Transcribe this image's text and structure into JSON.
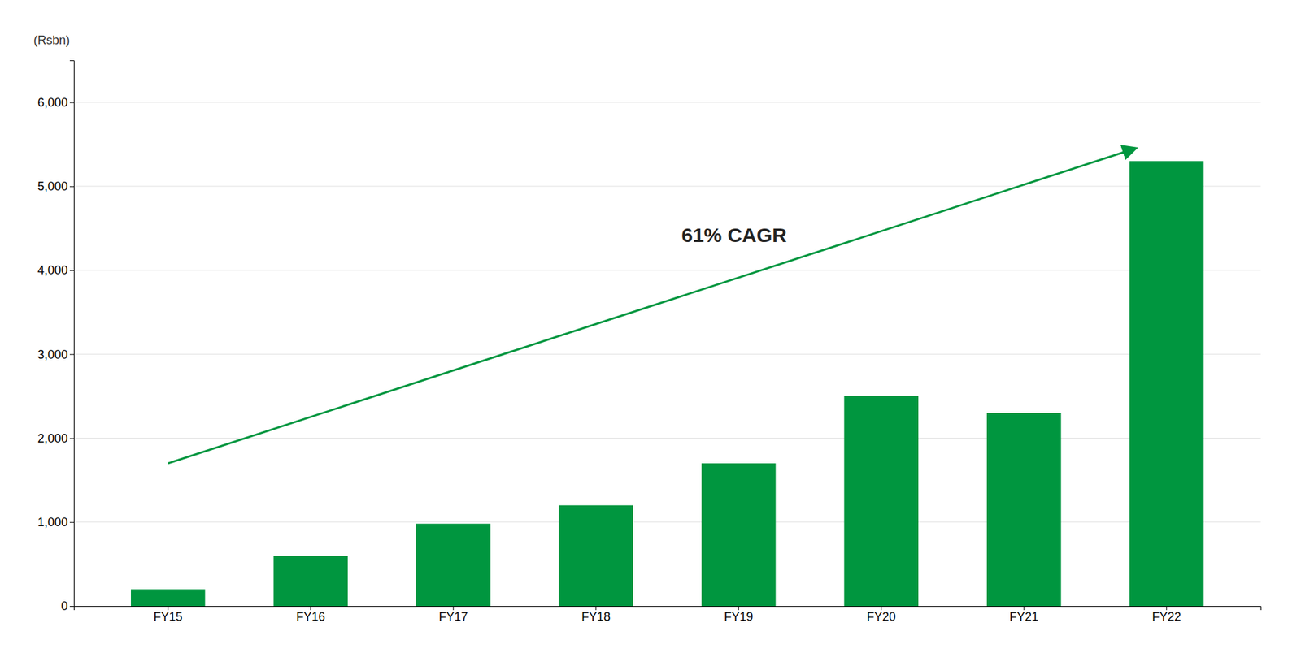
{
  "chart_data": {
    "type": "bar",
    "categories": [
      "FY15",
      "FY16",
      "FY17",
      "FY18",
      "FY19",
      "FY20",
      "FY21",
      "FY22"
    ],
    "values": [
      200,
      600,
      980,
      1200,
      1700,
      2500,
      2300,
      5300
    ],
    "color": "#00963F",
    "ylabel": "(Rsbn)",
    "annotations": [
      "61% CAGR"
    ],
    "ylim": [
      0,
      6500
    ],
    "yticks": [
      0,
      {
        "value": 1000,
        "label": "1,000"
      },
      {
        "value": 2000,
        "label": "2,000"
      },
      {
        "value": 3000,
        "label": "3,000"
      },
      {
        "value": 4000,
        "label": "4,000"
      },
      {
        "value": 5000,
        "label": "5,000"
      },
      {
        "value": 6000,
        "label": "6,000"
      }
    ],
    "grid": true
  }
}
